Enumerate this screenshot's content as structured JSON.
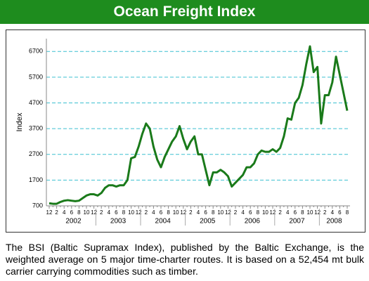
{
  "chart_data": {
    "type": "line",
    "title": "Ocean Freight Index",
    "y_label": "Index",
    "categories": [
      "12",
      null,
      "2",
      null,
      "4",
      null,
      "6",
      null,
      "8",
      null,
      "10",
      null,
      "12",
      null,
      "2",
      null,
      "4",
      null,
      "6",
      null,
      "8",
      null,
      "10",
      null,
      "12",
      null,
      "2",
      null,
      "4",
      null,
      "6",
      null,
      "8",
      null,
      "10",
      null,
      "12",
      null,
      "2",
      null,
      "4",
      null,
      "6",
      null,
      "8",
      null,
      "10",
      null,
      "12",
      null,
      "2",
      null,
      "4",
      null,
      "6",
      null,
      "8",
      null,
      "10",
      null,
      "12",
      null,
      "2",
      null,
      "4",
      null,
      "6",
      null,
      "8",
      null,
      "10",
      null,
      "12",
      null,
      "2",
      null,
      "4",
      null,
      "6",
      null,
      "8"
    ],
    "x_groups": [
      "2002",
      "2003",
      "2004",
      "2005",
      "2006",
      "2007",
      "2008"
    ],
    "series": [
      {
        "color": "#1a7a1a",
        "values": [
          800,
          780,
          780,
          850,
          900,
          920,
          900,
          880,
          900,
          1000,
          1100,
          1150,
          1150,
          1100,
          1200,
          1400,
          1500,
          1500,
          1450,
          1500,
          1500,
          1700,
          2550,
          2600,
          3000,
          3500,
          3900,
          3700,
          3000,
          2500,
          2200,
          2600,
          2900,
          3200,
          3400,
          3800,
          3300,
          2900,
          3200,
          3400,
          2700,
          2700,
          2100,
          1500,
          2000,
          2000,
          2100,
          2000,
          1850,
          1450,
          1600,
          1750,
          1900,
          2200,
          2200,
          2350,
          2700,
          2850,
          2800,
          2800,
          2900,
          2800,
          2950,
          3400,
          4100,
          4050,
          4700,
          4900,
          5400,
          6200,
          6900,
          5900,
          6100,
          3900,
          5000,
          5000,
          5500,
          6500,
          5800,
          5100,
          4400
        ]
      }
    ],
    "ylim": [
      700,
      7200
    ],
    "yticks": [
      700,
      1700,
      2700,
      3700,
      4700,
      5700,
      6700
    ],
    "grid": true
  },
  "caption": "The BSI (Baltic Supramax Index), published by the Baltic Exchange, is the weighted average on 5 major time-charter routes. It is based on a 52,454 mt bulk carrier carrying commodities such as timber."
}
